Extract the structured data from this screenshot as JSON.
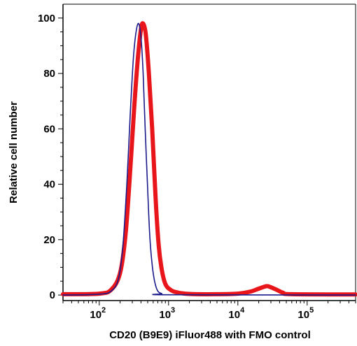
{
  "chart_data": {
    "type": "line",
    "xlabel": "CD20 (B9E9) iFluor488 with FMO control",
    "ylabel": "Relative cell number",
    "x_scale": "log",
    "xlim": [
      30,
      500000
    ],
    "ylim": [
      -2,
      105
    ],
    "x_ticks": [
      {
        "value": 100,
        "base": "10",
        "exp": "2"
      },
      {
        "value": 1000,
        "base": "10",
        "exp": "3"
      },
      {
        "value": 10000,
        "base": "10",
        "exp": "4"
      },
      {
        "value": 100000,
        "base": "10",
        "exp": "5"
      }
    ],
    "y_ticks": [
      {
        "value": 0,
        "label": "0"
      },
      {
        "value": 20,
        "label": "20"
      },
      {
        "value": 40,
        "label": "40"
      },
      {
        "value": 60,
        "label": "60"
      },
      {
        "value": 80,
        "label": "80"
      },
      {
        "value": 100,
        "label": "100"
      }
    ],
    "grid": false,
    "series": [
      {
        "color": "#e8161b",
        "style": "thick",
        "points": [
          [
            30,
            0.3
          ],
          [
            100,
            0.5
          ],
          [
            150,
            2
          ],
          [
            200,
            8
          ],
          [
            240,
            22
          ],
          [
            280,
            45
          ],
          [
            320,
            68
          ],
          [
            360,
            85
          ],
          [
            400,
            96
          ],
          [
            430,
            98
          ],
          [
            470,
            94
          ],
          [
            520,
            80
          ],
          [
            580,
            60
          ],
          [
            650,
            35
          ],
          [
            720,
            18
          ],
          [
            800,
            9
          ],
          [
            900,
            4
          ],
          [
            1050,
            2
          ],
          [
            1300,
            1
          ],
          [
            2000,
            0.4
          ],
          [
            5000,
            0.3
          ],
          [
            10000,
            0.5
          ],
          [
            15000,
            1.2
          ],
          [
            20000,
            2.3
          ],
          [
            26000,
            3.2
          ],
          [
            30000,
            2.8
          ],
          [
            37000,
            1.8
          ],
          [
            45000,
            0.8
          ],
          [
            60000,
            0.3
          ],
          [
            500000,
            0.2
          ]
        ]
      },
      {
        "color": "#1a1a8c",
        "style": "thin",
        "points": [
          [
            30,
            0
          ],
          [
            100,
            0.3
          ],
          [
            150,
            1.5
          ],
          [
            190,
            6
          ],
          [
            220,
            18
          ],
          [
            250,
            40
          ],
          [
            280,
            65
          ],
          [
            310,
            85
          ],
          [
            340,
            95
          ],
          [
            370,
            98
          ],
          [
            400,
            93
          ],
          [
            430,
            80
          ],
          [
            460,
            60
          ],
          [
            500,
            38
          ],
          [
            540,
            20
          ],
          [
            600,
            8
          ],
          [
            680,
            2
          ],
          [
            800,
            0.5
          ],
          [
            1000,
            0.1
          ],
          [
            500000,
            0
          ]
        ]
      }
    ]
  }
}
